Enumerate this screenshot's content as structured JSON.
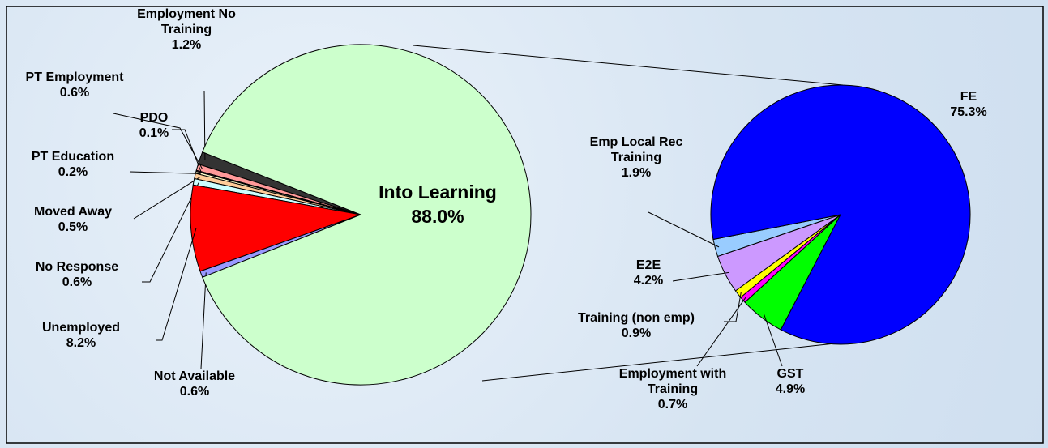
{
  "chart_data": [
    {
      "type": "pie",
      "categories": [
        "Employment No Training",
        "PT Employment",
        "PDO",
        "PT Education",
        "Moved Away",
        "No Response",
        "Unemployed",
        "Not Available",
        "Into Learning"
      ],
      "values": [
        1.2,
        0.6,
        0.1,
        0.2,
        0.5,
        0.6,
        8.2,
        0.6,
        88
      ],
      "value_labels": [
        "1.2%",
        "0.6%",
        "0.1%",
        "0.2%",
        "0.5%",
        "0.6%",
        "8.2%",
        "0.6%",
        "88.0%"
      ],
      "colors": [
        "#333333",
        "#ff9999",
        "#993366",
        "#ffffcc",
        "#ffcc99",
        "#ccffff",
        "#ff0000",
        "#9999ff",
        "#ccffcc"
      ]
    },
    {
      "type": "pie",
      "categories": [
        "Emp Local Rec Training",
        "E2E",
        "Training (non emp)",
        "Employment with Training",
        "GST",
        "FE"
      ],
      "values": [
        1.9,
        4.2,
        0.9,
        0.7,
        4.9,
        75.3
      ],
      "value_labels": [
        "1.9%",
        "4.2%",
        "0.9%",
        "0.7%",
        "4.9%",
        "75.3%"
      ],
      "colors": [
        "#99ccff",
        "#cc99ff",
        "#ffff00",
        "#ff00ff",
        "#00ff00",
        "#0000ff"
      ]
    }
  ]
}
